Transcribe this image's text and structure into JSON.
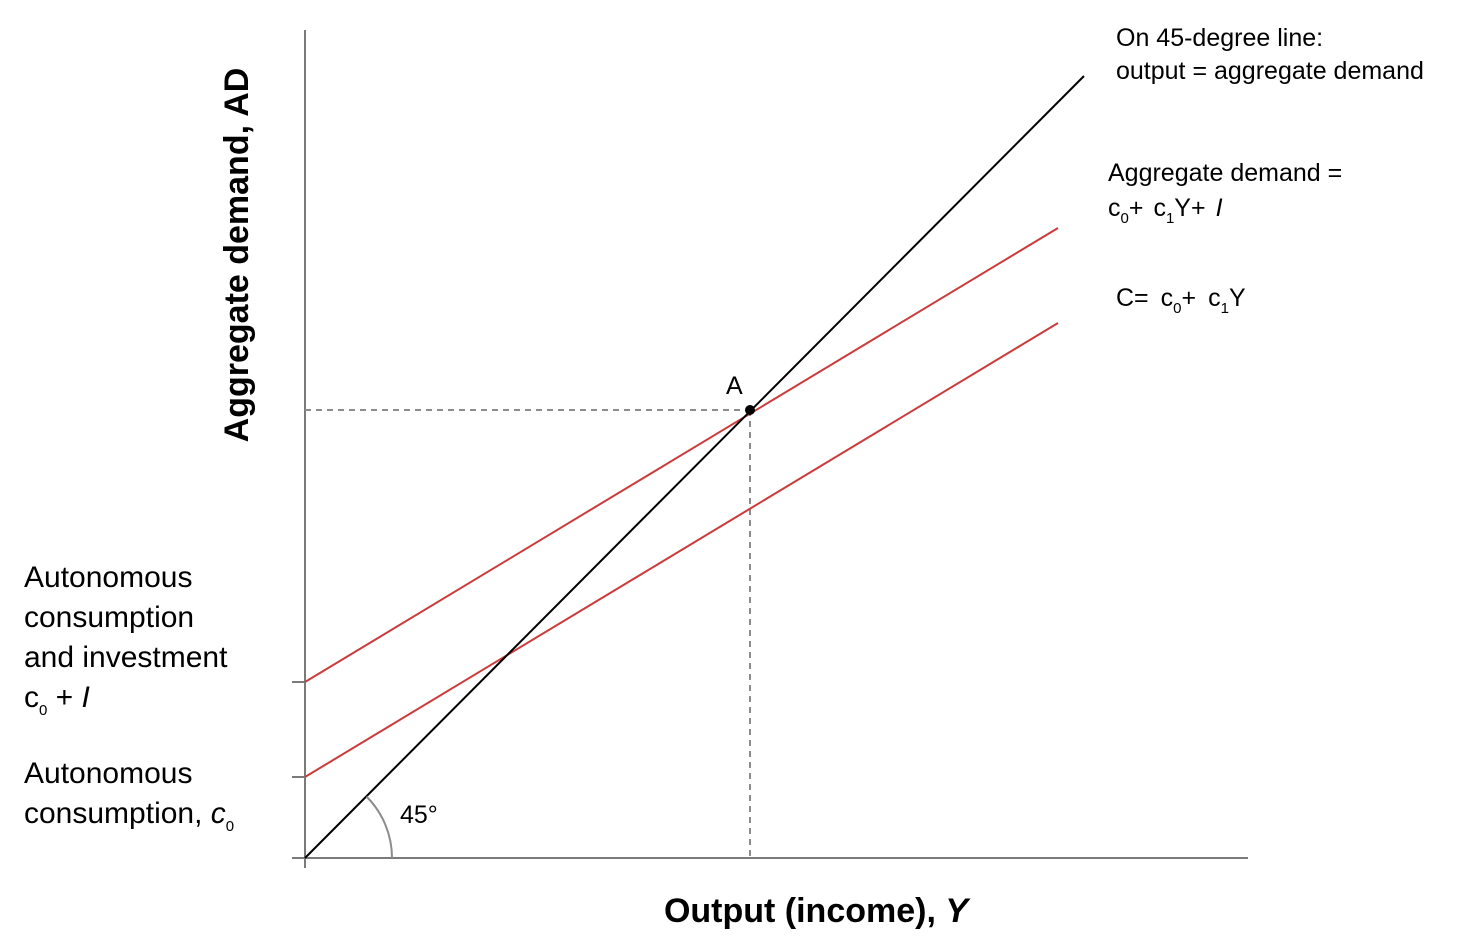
{
  "diagram": {
    "y_axis_label": "Aggregate demand, AD",
    "x_axis_label_prefix": "Output (income), ",
    "x_axis_label_var": "Y",
    "equilibrium_point_label": "A",
    "angle_label": "45°",
    "line_45": {
      "label_line1": "On 45-degree line:",
      "label_line2": "output = aggregate demand"
    },
    "ad_line": {
      "label_line1": "Aggregate demand =",
      "label_eq": {
        "c": "c",
        "zero": "0",
        "plus1": "+",
        "c1": "c",
        "one": "1",
        "y": "Y+",
        "i": "I"
      }
    },
    "c_line": {
      "label_eq": {
        "c_eq": "C=",
        "c": "c",
        "zero": "0",
        "plus1": "+",
        "c1": "c",
        "one": "1",
        "y": "Y"
      }
    },
    "intercept_ad": {
      "line1": "Autonomous",
      "line2": "consumption",
      "line3": "and investment",
      "c": "c",
      "zero": "0",
      "plus_i": " + ",
      "i": "I"
    },
    "intercept_c": {
      "line1": "Autonomous",
      "line2": "consumption, ",
      "c": "c",
      "zero": "0"
    },
    "colors": {
      "axis": "#7a7a7a",
      "line_45": "#000000",
      "demand_lines": "#cc3b3b",
      "guides": "#8c8c8c",
      "angle_arc": "#8c8c8c"
    }
  }
}
